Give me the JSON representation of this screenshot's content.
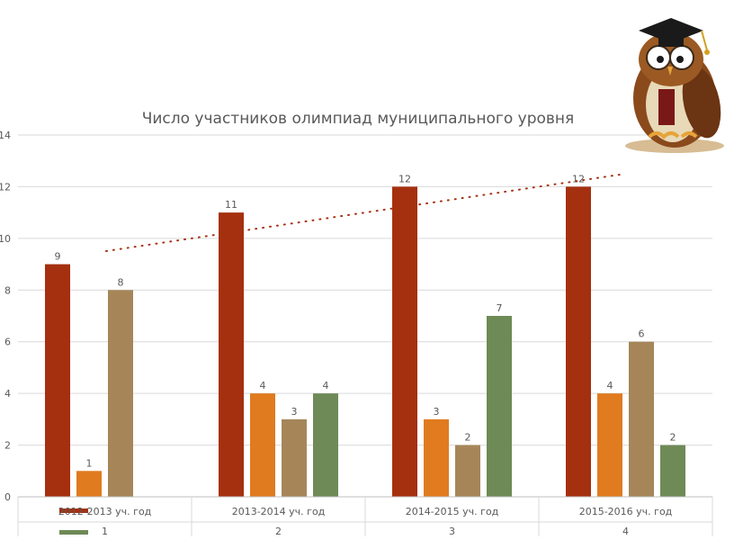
{
  "chart_data": {
    "type": "bar",
    "title": "Число участников олимпиад муниципального уровня",
    "categories": [
      "2012-2013 уч. год",
      "2013-2014 уч. год",
      "2014-2015 уч. год",
      "2015-2016 уч. год"
    ],
    "category_numbers": [
      "1",
      "2",
      "3",
      "4"
    ],
    "ylim": [
      0,
      14
    ],
    "yticks": [
      0,
      2,
      4,
      6,
      8,
      10,
      12,
      14
    ],
    "grid": true,
    "series": [
      {
        "values": [
          9,
          11,
          12,
          12
        ],
        "color": "#a5300f"
      },
      {
        "values": [
          1,
          4,
          3,
          4
        ],
        "color": "#e07b1f"
      },
      {
        "values": [
          8,
          3,
          2,
          6
        ],
        "color": "#a68659"
      },
      {
        "values": [
          0,
          4,
          7,
          2
        ],
        "color": "#6e8a56"
      }
    ],
    "trendline": {
      "series_index": 0,
      "style": "dotted",
      "color": "#a5300f"
    },
    "legend_swatches": [
      "#a5300f",
      "#6e8a56"
    ]
  }
}
